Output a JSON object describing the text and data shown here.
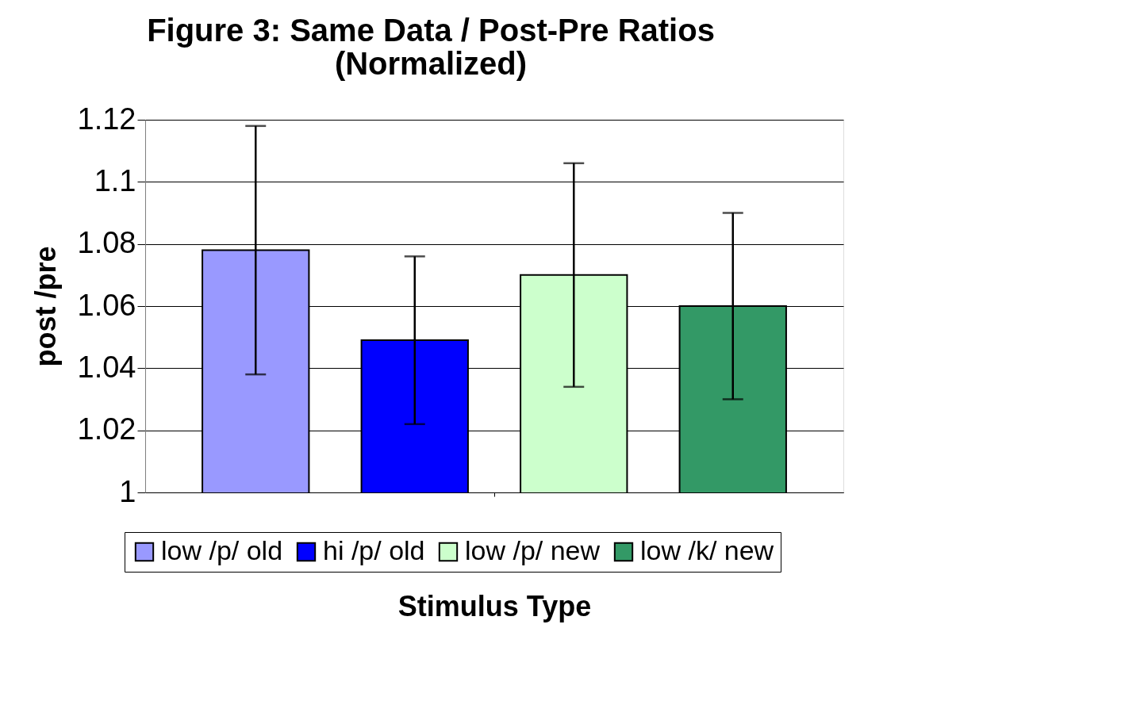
{
  "chart_data": {
    "type": "bar",
    "title": "Figure 3: Same Data / Post-Pre Ratios\n(Normalized)",
    "xlabel": "Stimulus Type",
    "ylabel": "post /pre",
    "categories": [
      null
    ],
    "series": [
      {
        "name": "low /p/ old",
        "color": "#9999ff",
        "values": [
          1.078
        ],
        "errors": [
          0.04
        ]
      },
      {
        "name": "hi /p/ old",
        "color": "#0000ff",
        "values": [
          1.049
        ],
        "errors": [
          0.027
        ]
      },
      {
        "name": "low /p/ new",
        "color": "#ccffcc",
        "values": [
          1.07
        ],
        "errors": [
          0.036
        ]
      },
      {
        "name": "low /k/ new",
        "color": "#339966",
        "values": [
          1.06
        ],
        "errors": [
          0.03
        ]
      }
    ],
    "ylim": [
      1,
      1.12
    ],
    "yticks": [
      1,
      1.02,
      1.04,
      1.06,
      1.08,
      1.1,
      1.12
    ],
    "grid": "y",
    "legend": "bottom"
  }
}
